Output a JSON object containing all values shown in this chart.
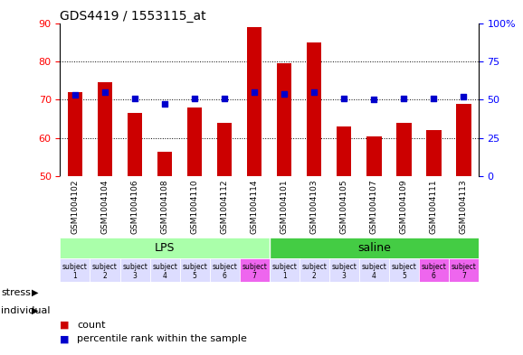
{
  "title": "GDS4419 / 1553115_at",
  "samples": [
    "GSM1004102",
    "GSM1004104",
    "GSM1004106",
    "GSM1004108",
    "GSM1004110",
    "GSM1004112",
    "GSM1004114",
    "GSM1004101",
    "GSM1004103",
    "GSM1004105",
    "GSM1004107",
    "GSM1004109",
    "GSM1004111",
    "GSM1004113"
  ],
  "counts": [
    72,
    74.5,
    66.5,
    56.5,
    68,
    64,
    89,
    79.5,
    85,
    63,
    60.5,
    64,
    62,
    69
  ],
  "percentile_ranks": [
    53,
    55,
    51,
    47,
    51,
    51,
    55,
    54,
    55,
    51,
    50,
    51,
    51,
    52
  ],
  "ylim_left": [
    50,
    90
  ],
  "ylim_right": [
    0,
    100
  ],
  "yticks_left": [
    50,
    60,
    70,
    80,
    90
  ],
  "yticks_right": [
    0,
    25,
    50,
    75,
    100
  ],
  "bar_color": "#cc0000",
  "dot_color": "#0000cc",
  "bar_width": 0.5,
  "lps_color": "#aaffaa",
  "saline_color": "#44cc44",
  "individual_colors": [
    "#ddddff",
    "#ddddff",
    "#ddddff",
    "#ddddff",
    "#ddddff",
    "#ddddff",
    "#ee66ee",
    "#ddddff",
    "#ddddff",
    "#ddddff",
    "#ddddff",
    "#ddddff",
    "#ee66ee",
    "#ee66ee"
  ],
  "individual_labels_top": [
    "subject",
    "subject",
    "subject",
    "subject",
    "subject",
    "subject",
    "subject",
    "subject",
    "subject",
    "subject",
    "subject",
    "subject",
    "subject",
    "subject"
  ],
  "individual_labels_bot": [
    "1",
    "2",
    "3",
    "4",
    "5",
    "6",
    "7",
    "1",
    "2",
    "3",
    "4",
    "5",
    "6",
    "7"
  ],
  "xtick_bg": "#d0d0d0",
  "chart_bg": "#ffffff",
  "legend_count_color": "#cc0000",
  "legend_pct_color": "#0000cc"
}
